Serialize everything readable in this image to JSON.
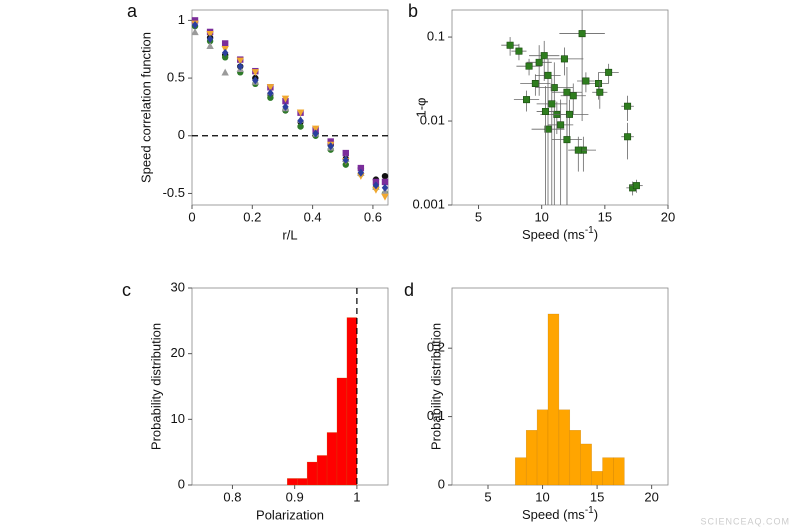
{
  "chart_data": [
    {
      "label": "a",
      "type": "scatter",
      "xlabel": "r/L",
      "ylabel": "Speed correlation function",
      "xlim": [
        0,
        0.65
      ],
      "ylim": [
        -0.6,
        1.09
      ],
      "xticks": [
        0,
        0.2,
        0.4,
        0.6
      ],
      "yticks": [
        -0.5,
        0,
        0.5,
        1
      ],
      "hline": 0,
      "x": [
        0.01,
        0.06,
        0.11,
        0.16,
        0.21,
        0.26,
        0.31,
        0.36,
        0.41,
        0.46,
        0.51,
        0.56,
        0.61,
        0.64
      ],
      "series": [
        {
          "color": "#111111",
          "marker": "circle",
          "values": [
            0.99,
            0.85,
            0.7,
            0.6,
            0.5,
            0.36,
            0.22,
            0.12,
            0.02,
            -0.08,
            -0.2,
            -0.28,
            -0.38,
            -0.35
          ]
        },
        {
          "color": "#7b2d9a",
          "marker": "square",
          "values": [
            1.0,
            0.9,
            0.8,
            0.66,
            0.56,
            0.42,
            0.3,
            0.2,
            0.05,
            -0.05,
            -0.15,
            -0.28,
            -0.4,
            -0.4
          ]
        },
        {
          "color": "#2f7a2a",
          "marker": "circle",
          "values": [
            0.95,
            0.82,
            0.68,
            0.55,
            0.45,
            0.33,
            0.22,
            0.08,
            0.0,
            -0.12,
            -0.25,
            -0.33,
            -0.45,
            -0.5
          ]
        },
        {
          "color": "#9a9a9a",
          "marker": "triangle-up",
          "values": [
            0.9,
            0.78,
            0.55,
            0.58,
            0.47,
            0.38,
            0.24,
            0.14,
            0.02,
            -0.1,
            -0.2,
            -0.32,
            -0.44,
            -0.48
          ]
        },
        {
          "color": "#f0a830",
          "marker": "triangle-down",
          "values": [
            0.97,
            0.88,
            0.75,
            0.65,
            0.55,
            0.42,
            0.32,
            0.2,
            0.06,
            -0.08,
            -0.22,
            -0.35,
            -0.47,
            -0.53
          ]
        },
        {
          "color": "#2b3f9e",
          "marker": "diamond",
          "values": [
            0.96,
            0.84,
            0.72,
            0.6,
            0.48,
            0.37,
            0.25,
            0.13,
            0.02,
            -0.09,
            -0.21,
            -0.32,
            -0.43,
            -0.45
          ]
        }
      ]
    },
    {
      "label": "b",
      "type": "scatter",
      "xlabel": [
        "Speed (ms",
        "-1",
        ")"
      ],
      "ylabel": "1-φ",
      "xlim": [
        2.9,
        20
      ],
      "ylim": [
        0.001,
        0.21
      ],
      "ylog": true,
      "xticks": [
        5,
        10,
        15,
        20
      ],
      "yticks": [
        0.001,
        0.01,
        0.1
      ],
      "series": [
        {
          "color": "#2e7d1e",
          "marker": "square",
          "x": [
            7.5,
            8.2,
            9,
            10.2,
            11.8,
            13.2,
            9.5,
            10.5,
            11,
            12,
            8.8,
            10.8,
            12.5,
            14.5,
            14.6,
            15.3,
            13.5,
            11.2,
            12.2,
            11.5,
            10.5,
            13.3,
            12.9,
            16.8,
            16.8,
            17.2,
            17.5,
            9.8,
            10.3,
            12
          ],
          "values": [
            0.08,
            0.068,
            0.045,
            0.06,
            0.055,
            0.11,
            0.028,
            0.035,
            0.025,
            0.022,
            0.018,
            0.016,
            0.02,
            0.028,
            0.022,
            0.038,
            0.03,
            0.012,
            0.012,
            0.009,
            0.008,
            0.0045,
            0.0045,
            0.015,
            0.0065,
            0.0016,
            0.0017,
            0.05,
            0.013,
            0.006
          ],
          "x_err": [
            0.7,
            0.6,
            1,
            1.2,
            1.5,
            1.8,
            1.2,
            1,
            1.5,
            1.2,
            1,
            1.2,
            1,
            0.8,
            0.6,
            0.8,
            0.7,
            1.3,
            1.5,
            1,
            1.3,
            1,
            0.8,
            0.5,
            0.5,
            0.5,
            0.5,
            1,
            0.7,
            1.2
          ],
          "y_err": [
            0.02,
            0.015,
            0.01,
            0.03,
            0.02,
            0.1,
            0.008,
            0.02,
            0.025,
            0.022,
            0.005,
            0.016,
            0.008,
            0.01,
            0.008,
            0.01,
            0.008,
            0.005,
            0.006,
            0.009,
            0.008,
            0.002,
            0.002,
            0.005,
            0.003,
            0.0003,
            0.0003,
            0.03,
            0.013,
            0.006
          ]
        }
      ]
    },
    {
      "label": "c",
      "type": "histogram",
      "xlabel": "Polarization",
      "ylabel": "Probability distribution",
      "xlim": [
        0.735,
        1.05
      ],
      "ylim": [
        0,
        30
      ],
      "xticks": [
        0.8,
        0.9,
        1
      ],
      "yticks": [
        0,
        10,
        20,
        30
      ],
      "vline": 1,
      "color": "#ff0000",
      "bins": [
        0.888,
        0.904,
        0.92,
        0.936,
        0.952,
        0.968,
        0.984,
        1.0
      ],
      "values": [
        1,
        1,
        3.5,
        4.5,
        8,
        16.3,
        25.5
      ]
    },
    {
      "label": "d",
      "type": "histogram",
      "xlabel": [
        "Speed (ms",
        "-1",
        ")"
      ],
      "ylabel": "Probability distribution",
      "xlim": [
        1.7,
        21.5
      ],
      "ylim": [
        0,
        0.288
      ],
      "xticks": [
        5,
        10,
        15,
        20
      ],
      "yticks": [
        0,
        0.1,
        0.2
      ],
      "color": "#ffa500",
      "bins": [
        7.5,
        8.5,
        9.5,
        10.5,
        11.5,
        12.5,
        13.5,
        14.5,
        15.5,
        16.5,
        17.5
      ],
      "values": [
        0.04,
        0.08,
        0.11,
        0.25,
        0.11,
        0.08,
        0.06,
        0.02,
        0.04,
        0.04
      ]
    }
  ],
  "watermark": "SCIENCEAQ.COM"
}
